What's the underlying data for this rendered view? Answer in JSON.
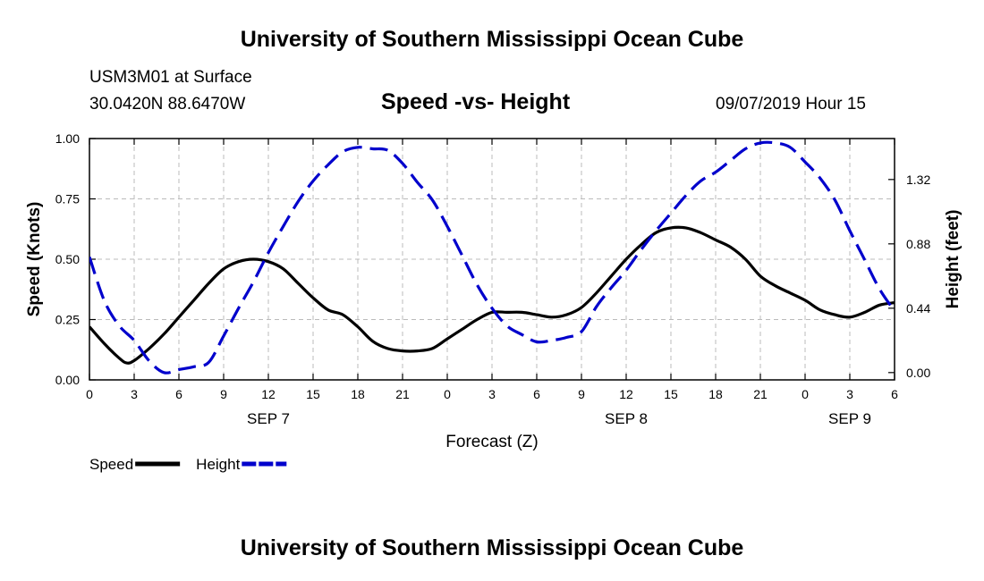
{
  "header": {
    "title": "University of Southern Mississippi Ocean Cube",
    "station": "USM3M01 at Surface",
    "coords": "30.0420N 88.6470W",
    "chart_title": "Speed -vs- Height",
    "datetime": "09/07/2019 Hour 15"
  },
  "footer": {
    "title": "University of Southern Mississippi Ocean Cube"
  },
  "colors": {
    "speed": "#000000",
    "height": "#0000cc",
    "grid": "#bbbbbb"
  },
  "chart_data": {
    "type": "line",
    "title": "Speed -vs- Height",
    "xlabel": "Forecast (Z)",
    "ylabel": "Speed (Knots)",
    "y2label": "Height (feet)",
    "x_range": [
      0,
      54
    ],
    "ylim": [
      0,
      1.0
    ],
    "y2lim": [
      -0.05,
      1.6
    ],
    "x_tick_values": [
      0,
      3,
      6,
      9,
      12,
      15,
      18,
      21,
      24,
      27,
      30,
      33,
      36,
      39,
      42,
      45,
      48,
      51,
      54
    ],
    "x_tick_labels": [
      "0",
      "3",
      "6",
      "9",
      "12",
      "15",
      "18",
      "21",
      "0",
      "3",
      "6",
      "9",
      "12",
      "15",
      "18",
      "21",
      "0",
      "3",
      "6"
    ],
    "y_ticks": [
      0.0,
      0.25,
      0.5,
      0.75,
      1.0
    ],
    "y_tick_labels": [
      "0.00",
      "0.25",
      "0.50",
      "0.75",
      "1.00"
    ],
    "y2_ticks": [
      0.0,
      0.44,
      0.88,
      1.32
    ],
    "y2_tick_labels": [
      "0.00",
      "0.44",
      "0.88",
      "1.32"
    ],
    "day_labels": [
      {
        "x": 12,
        "text": "SEP 7"
      },
      {
        "x": 36,
        "text": "SEP 8"
      },
      {
        "x": 51,
        "text": "SEP 9"
      }
    ],
    "legend": [
      {
        "name": "Speed",
        "style": "solid"
      },
      {
        "name": "Height",
        "style": "dashed"
      }
    ],
    "series": [
      {
        "name": "Speed",
        "axis": "left",
        "x": [
          0,
          1,
          2,
          2.5,
          3,
          4,
          5,
          6,
          7,
          8,
          9,
          10,
          11,
          12,
          13,
          14,
          15,
          16,
          17,
          18,
          19,
          20,
          21,
          22,
          23,
          24,
          25,
          26,
          27,
          28,
          29,
          30,
          31,
          32,
          33,
          34,
          35,
          36,
          37,
          38,
          39,
          40,
          41,
          42,
          43,
          44,
          45,
          46,
          47,
          48,
          49,
          50,
          51,
          52,
          53,
          54
        ],
        "values": [
          0.22,
          0.15,
          0.09,
          0.07,
          0.08,
          0.13,
          0.19,
          0.26,
          0.33,
          0.4,
          0.46,
          0.49,
          0.5,
          0.49,
          0.46,
          0.4,
          0.34,
          0.29,
          0.27,
          0.22,
          0.16,
          0.13,
          0.12,
          0.12,
          0.13,
          0.17,
          0.21,
          0.25,
          0.28,
          0.28,
          0.28,
          0.27,
          0.26,
          0.27,
          0.3,
          0.36,
          0.43,
          0.5,
          0.56,
          0.61,
          0.63,
          0.63,
          0.61,
          0.58,
          0.55,
          0.5,
          0.43,
          0.39,
          0.36,
          0.33,
          0.29,
          0.27,
          0.26,
          0.28,
          0.31,
          0.32
        ]
      },
      {
        "name": "Height",
        "axis": "right",
        "x": [
          0,
          1,
          2,
          3,
          4,
          5,
          6,
          7,
          8,
          9,
          10,
          11,
          12,
          13,
          14,
          15,
          16,
          17,
          18,
          19,
          20,
          21,
          22,
          23,
          24,
          25,
          26,
          27,
          28,
          29,
          30,
          31,
          32,
          33,
          34,
          35,
          36,
          37,
          38,
          39,
          40,
          41,
          42,
          43,
          44,
          45,
          46,
          47,
          48,
          49,
          50,
          51,
          52,
          53,
          54
        ],
        "values": [
          0.79,
          0.49,
          0.32,
          0.22,
          0.08,
          0.0,
          0.02,
          0.04,
          0.07,
          0.25,
          0.44,
          0.62,
          0.82,
          1.0,
          1.17,
          1.31,
          1.42,
          1.51,
          1.54,
          1.53,
          1.52,
          1.43,
          1.3,
          1.18,
          1.0,
          0.8,
          0.6,
          0.44,
          0.32,
          0.26,
          0.21,
          0.22,
          0.24,
          0.28,
          0.45,
          0.58,
          0.7,
          0.84,
          0.97,
          1.09,
          1.21,
          1.31,
          1.37,
          1.45,
          1.53,
          1.57,
          1.57,
          1.54,
          1.44,
          1.33,
          1.18,
          0.97,
          0.77,
          0.57,
          0.42
        ]
      }
    ]
  }
}
